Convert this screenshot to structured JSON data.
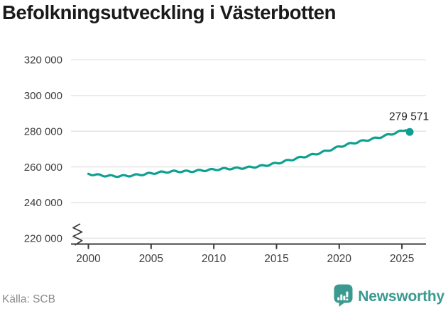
{
  "header": {
    "title": "Befolkningsutveckling i Västerbotten"
  },
  "footer": {
    "source": "Källa: SCB",
    "brand": "Newsworthy"
  },
  "colors": {
    "background": "#FFFFFF",
    "line": "#0DA091",
    "gridline": "#E2E2E2",
    "axis": "#3A3A3A",
    "tick_text": "#3D3D3D",
    "title_text": "#1A1A1A",
    "value_label_text": "#222222",
    "source_text": "#8A8A8A",
    "brand_teal": "#3B9A90"
  },
  "chart_data": {
    "type": "line",
    "title": "Befolkningsutveckling i Västerbotten",
    "source": "SCB",
    "grid": "horizontal",
    "legend": false,
    "ylim_displayed": [
      220000,
      320000
    ],
    "axis_break_at_bottom": true,
    "x_ticks": [
      {
        "x": 2000,
        "label": "2000"
      },
      {
        "x": 2005,
        "label": "2005"
      },
      {
        "x": 2010,
        "label": "2010"
      },
      {
        "x": 2015,
        "label": "2015"
      },
      {
        "x": 2020,
        "label": "2020"
      },
      {
        "x": 2025,
        "label": "2025"
      }
    ],
    "y_ticks": [
      {
        "value": 320000,
        "label": "320 000"
      },
      {
        "value": 300000,
        "label": "300 000"
      },
      {
        "value": 280000,
        "label": "280 000"
      },
      {
        "value": 260000,
        "label": "260 000"
      },
      {
        "value": 240000,
        "label": "240 000"
      },
      {
        "value": 220000,
        "label": "220 000"
      }
    ],
    "series": [
      {
        "points_estimated_yearly": [
          [
            2000,
            256000
          ],
          [
            2001,
            255250
          ],
          [
            2002,
            254800
          ],
          [
            2003,
            254950
          ],
          [
            2004,
            255500
          ],
          [
            2005,
            256350
          ],
          [
            2006,
            257100
          ],
          [
            2007,
            257500
          ],
          [
            2008,
            257450
          ],
          [
            2009,
            257950
          ],
          [
            2010,
            258450
          ],
          [
            2011,
            259000
          ],
          [
            2012,
            259250
          ],
          [
            2013,
            259800
          ],
          [
            2014,
            260700
          ],
          [
            2015,
            262000
          ],
          [
            2016,
            263700
          ],
          [
            2017,
            265400
          ],
          [
            2018,
            267000
          ],
          [
            2019,
            268900
          ],
          [
            2020,
            271300
          ],
          [
            2021,
            273200
          ],
          [
            2022,
            274700
          ],
          [
            2023,
            276200
          ],
          [
            2024,
            278100
          ],
          [
            2025,
            280100
          ],
          [
            2025.3,
            280600
          ],
          [
            2025.62,
            279571
          ]
        ],
        "end_point": {
          "x": 2025.62,
          "value": 279571,
          "label": "279 571"
        },
        "seasonal_wiggle_amplitude": 450
      }
    ]
  }
}
